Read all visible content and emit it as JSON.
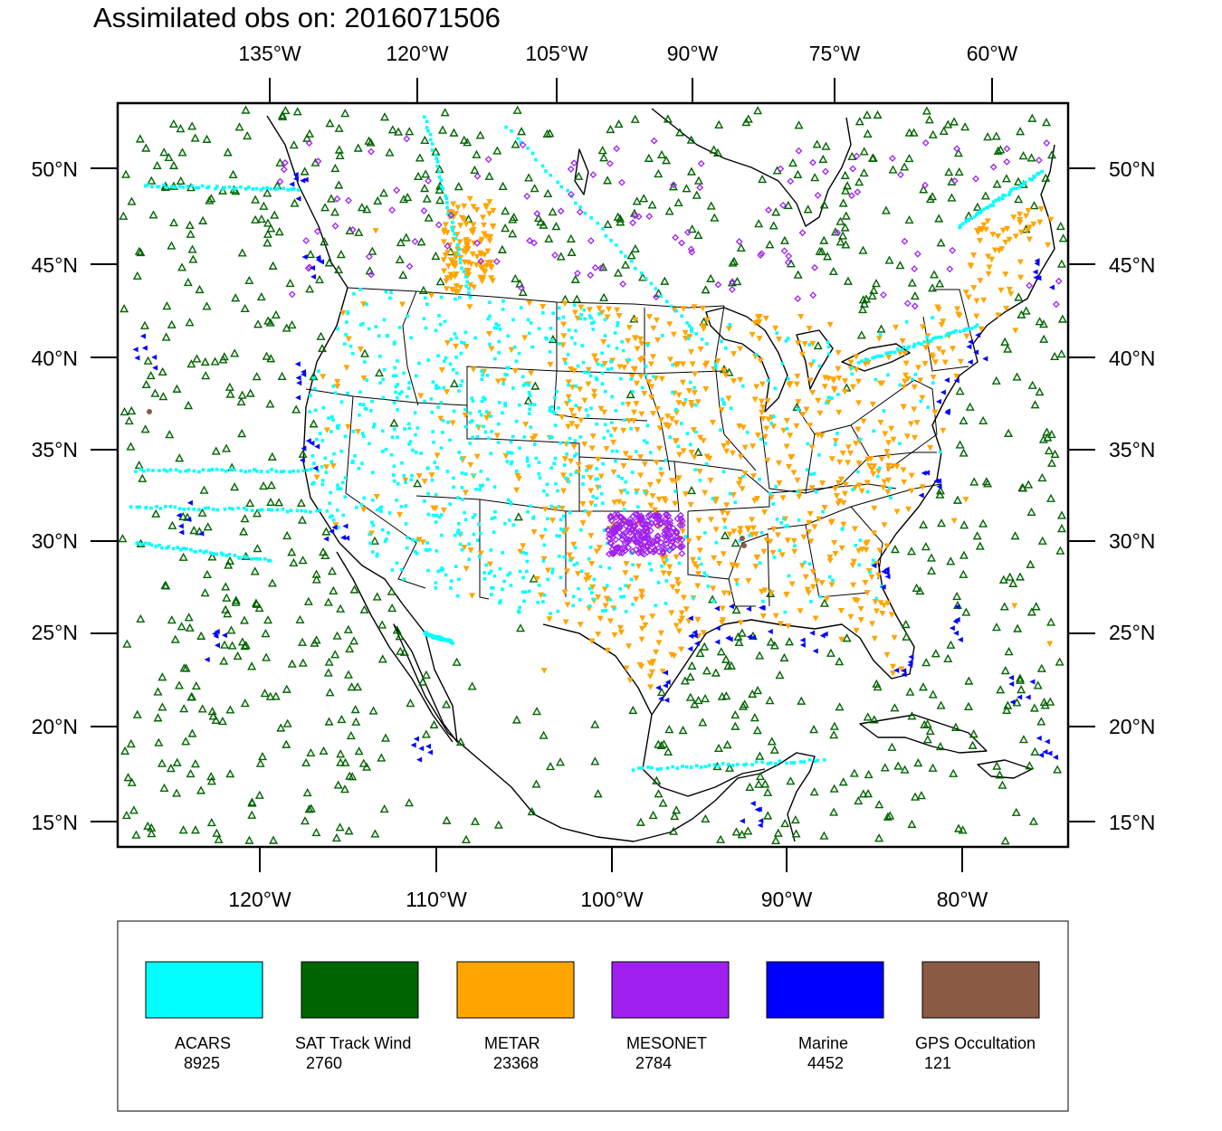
{
  "title": "Assimilated obs on: 2016071506",
  "axes": {
    "top_lon_labels": [
      "135°W",
      "120°W",
      "105°W",
      "90°W",
      "75°W",
      "60°W"
    ],
    "bottom_lon_labels": [
      "120°W",
      "110°W",
      "100°W",
      "90°W",
      "80°W"
    ],
    "lat_labels": [
      "50°N",
      "45°N",
      "40°N",
      "35°N",
      "30°N",
      "25°N",
      "20°N",
      "15°N"
    ]
  },
  "legend": {
    "items": [
      {
        "name": "ACARS",
        "count": "8925",
        "color": "#00ffff",
        "marker": "square-dot"
      },
      {
        "name": "SAT Track Wind",
        "count": "2760",
        "color": "#006400",
        "marker": "triangle-up"
      },
      {
        "name": "METAR",
        "count": "23368",
        "color": "#ffa500",
        "marker": "triangle-down"
      },
      {
        "name": "MESONET",
        "count": "2784",
        "color": "#a020f0",
        "marker": "diamond"
      },
      {
        "name": "Marine",
        "count": "4452",
        "color": "#0000ff",
        "marker": "triangle-left"
      },
      {
        "name": "GPS Occultation",
        "count": "121",
        "color": "#8b5a44",
        "marker": "hexagon"
      }
    ]
  }
}
